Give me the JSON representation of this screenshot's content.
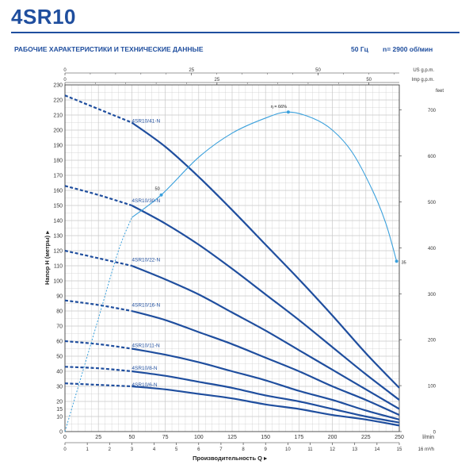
{
  "header": {
    "model": "4SR10",
    "subtitle": "РАБОЧИЕ ХАРАКТЕРИСТИКИ И ТЕХНИЧЕСКИЕ ДАННЫЕ",
    "frequency": "50 Гц",
    "speed": "n= 2900 об/мин"
  },
  "colors": {
    "brand": "#1f4e9e",
    "curve": "#1f4e9e",
    "efficiency": "#3aa0dc",
    "grid": "#c8c8c8",
    "axis": "#333333"
  },
  "chart_data": {
    "type": "line",
    "xlabel": "Производительность Q",
    "ylabel": "Напор H (метры)",
    "x_unit": "l/min",
    "x_unit_m3h": "m³/h",
    "x_unit_usgpm": "US g.p.m.",
    "x_unit_impgpm": "Imp g.p.m.",
    "y_unit_feet": "feet",
    "xlim": [
      0,
      250
    ],
    "ylim": [
      0,
      230
    ],
    "x_ticks_lmin": [
      0,
      25,
      50,
      75,
      100,
      125,
      150,
      175,
      200,
      225,
      250
    ],
    "x_ticks_m3h": [
      0,
      1,
      2,
      3,
      4,
      5,
      6,
      7,
      8,
      9,
      10,
      11,
      12,
      13,
      14,
      15
    ],
    "x_last_label_m3h": "16",
    "x_ticks_usgpm": [
      0,
      25,
      50
    ],
    "x_ticks_impgpm": [
      0,
      25,
      50
    ],
    "y_ticks": [
      0,
      10,
      15,
      20,
      30,
      40,
      50,
      60,
      70,
      80,
      90,
      100,
      110,
      120,
      130,
      140,
      150,
      160,
      170,
      180,
      190,
      200,
      210,
      220,
      230
    ],
    "y_ticks_feet": [
      0,
      100,
      200,
      300,
      400,
      500,
      600,
      700
    ],
    "grid": true,
    "series": [
      {
        "name": "4SR10/41-N",
        "label_at": [
          50,
          205
        ],
        "dashed_to": 50,
        "points": [
          [
            0,
            223
          ],
          [
            25,
            214
          ],
          [
            50,
            205
          ],
          [
            75,
            189
          ],
          [
            100,
            169
          ],
          [
            125,
            147
          ],
          [
            150,
            124
          ],
          [
            175,
            101
          ],
          [
            200,
            77
          ],
          [
            225,
            52
          ],
          [
            250,
            29
          ]
        ]
      },
      {
        "name": "4SR10/30-N",
        "label_at": [
          50,
          152
        ],
        "dashed_to": 50,
        "points": [
          [
            0,
            163
          ],
          [
            25,
            157
          ],
          [
            50,
            150
          ],
          [
            75,
            138
          ],
          [
            100,
            124
          ],
          [
            125,
            108
          ],
          [
            150,
            91
          ],
          [
            175,
            74
          ],
          [
            200,
            56
          ],
          [
            225,
            38
          ],
          [
            250,
            21
          ]
        ]
      },
      {
        "name": "4SR10/22-N",
        "label_at": [
          50,
          113
        ],
        "dashed_to": 50,
        "points": [
          [
            0,
            120
          ],
          [
            25,
            115
          ],
          [
            50,
            110
          ],
          [
            75,
            101
          ],
          [
            100,
            91
          ],
          [
            125,
            79
          ],
          [
            150,
            67
          ],
          [
            175,
            54
          ],
          [
            200,
            41
          ],
          [
            225,
            28
          ],
          [
            250,
            15
          ]
        ]
      },
      {
        "name": "4SR10/16-N",
        "label_at": [
          50,
          83
        ],
        "dashed_to": 50,
        "points": [
          [
            0,
            87
          ],
          [
            25,
            84
          ],
          [
            50,
            80
          ],
          [
            75,
            74
          ],
          [
            100,
            66
          ],
          [
            125,
            58
          ],
          [
            150,
            49
          ],
          [
            175,
            40
          ],
          [
            200,
            30
          ],
          [
            225,
            21
          ],
          [
            250,
            11
          ]
        ]
      },
      {
        "name": "4SR10/11-N",
        "label_at": [
          50,
          56
        ],
        "dashed_to": 50,
        "points": [
          [
            0,
            60
          ],
          [
            25,
            58
          ],
          [
            50,
            55
          ],
          [
            75,
            51
          ],
          [
            100,
            46
          ],
          [
            125,
            40
          ],
          [
            150,
            34
          ],
          [
            175,
            27
          ],
          [
            200,
            21
          ],
          [
            225,
            14
          ],
          [
            250,
            8
          ]
        ]
      },
      {
        "name": "4SR10/8-N",
        "label_at": [
          50,
          41
        ],
        "dashed_to": 50,
        "points": [
          [
            0,
            43
          ],
          [
            25,
            42
          ],
          [
            50,
            40
          ],
          [
            75,
            37
          ],
          [
            100,
            33
          ],
          [
            125,
            29
          ],
          [
            150,
            24
          ],
          [
            175,
            20
          ],
          [
            200,
            15
          ],
          [
            225,
            10
          ],
          [
            250,
            6
          ]
        ]
      },
      {
        "name": "4SR10/6-N",
        "label_at": [
          50,
          30
        ],
        "dashed_to": 50,
        "points": [
          [
            0,
            32
          ],
          [
            25,
            31
          ],
          [
            50,
            30
          ],
          [
            75,
            28
          ],
          [
            100,
            25
          ],
          [
            125,
            22
          ],
          [
            150,
            18
          ],
          [
            175,
            15
          ],
          [
            200,
            11
          ],
          [
            225,
            8
          ],
          [
            250,
            4
          ]
        ]
      }
    ],
    "efficiency": {
      "label": "η = 66%",
      "points": [
        [
          0,
          0
        ],
        [
          10,
          30
        ],
        [
          25,
          75
        ],
        [
          40,
          120
        ],
        [
          50,
          142
        ],
        [
          72,
          157
        ],
        [
          100,
          182
        ],
        [
          125,
          198
        ],
        [
          150,
          208
        ],
        [
          167,
          212
        ],
        [
          185,
          208
        ],
        [
          200,
          200
        ],
        [
          215,
          185
        ],
        [
          230,
          160
        ],
        [
          240,
          138
        ],
        [
          248,
          113
        ]
      ],
      "dashed_until": 50,
      "markers": [
        {
          "x": 72,
          "y": 157,
          "label": "50"
        },
        {
          "x": 167,
          "y": 212,
          "label": "η = 66%"
        },
        {
          "x": 248,
          "y": 113,
          "label": "35"
        }
      ]
    }
  }
}
